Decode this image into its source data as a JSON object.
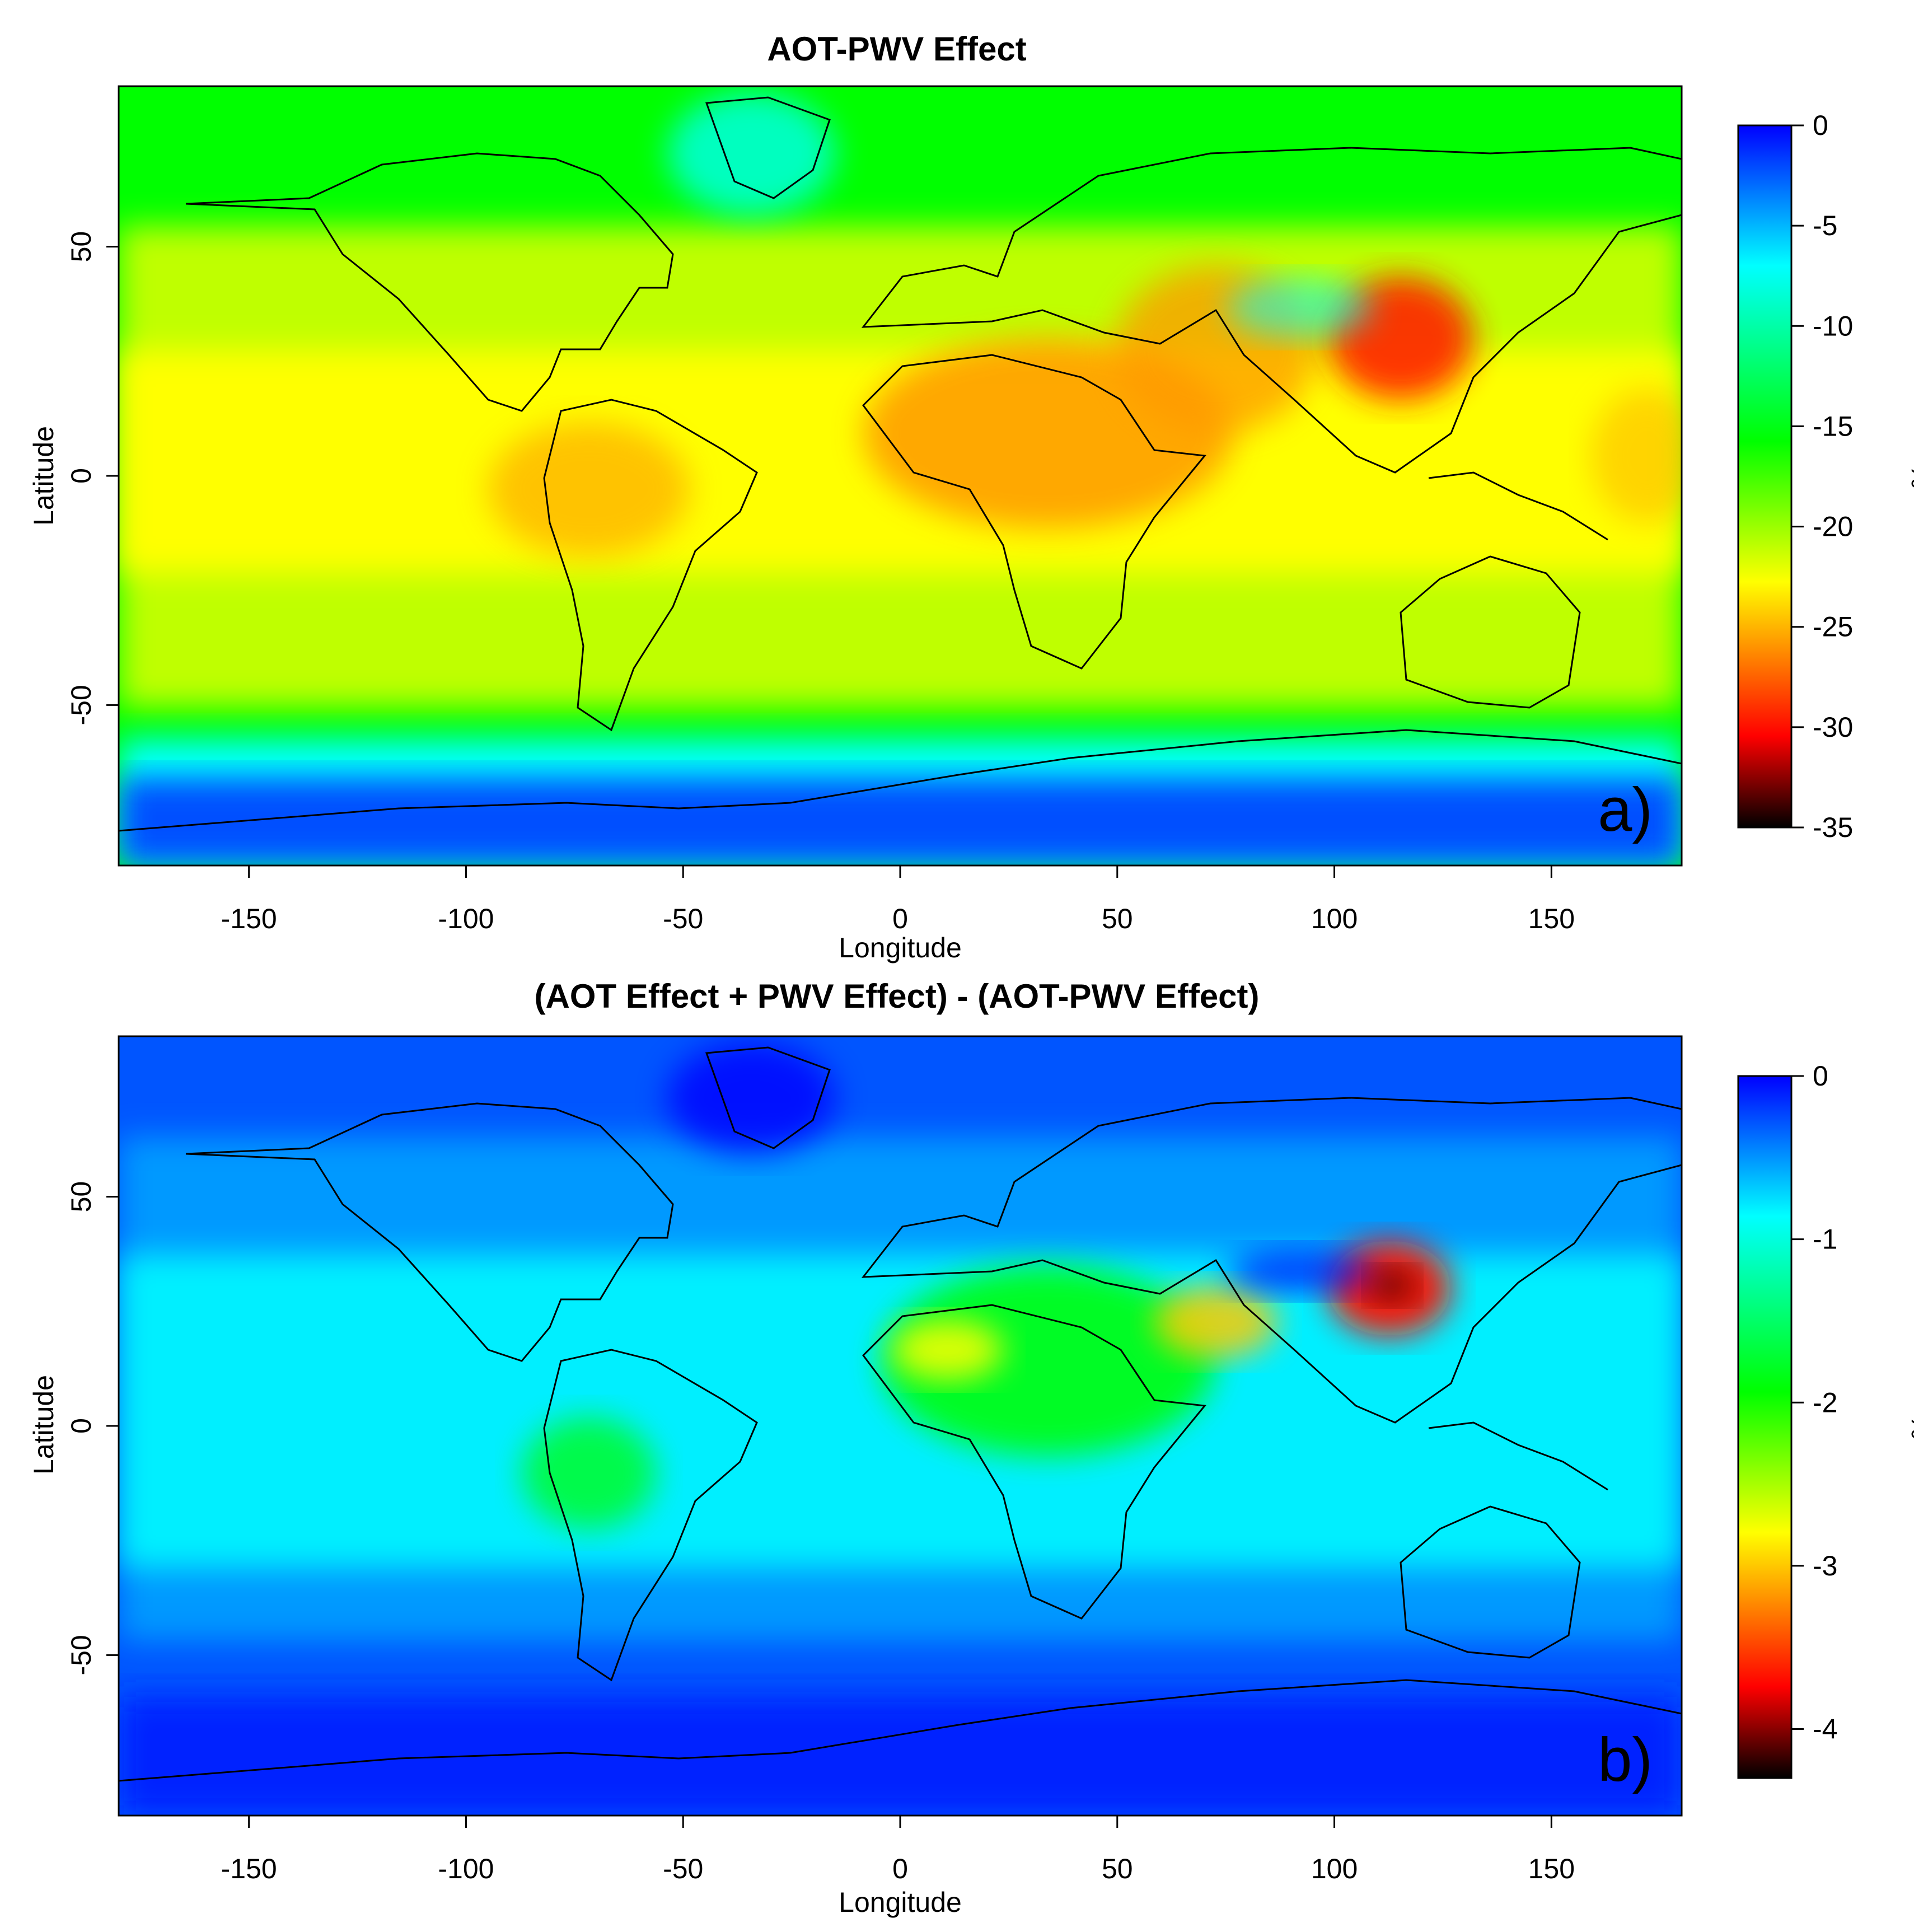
{
  "panels": [
    {
      "title": "AOT-PWV Effect",
      "xlabel": "Longitude",
      "ylabel": "Latitude",
      "panel_letter": "a)",
      "colorbar": {
        "unit": "%",
        "ticks": [
          0,
          -5,
          -10,
          -15,
          -20,
          -25,
          -30,
          -35
        ],
        "range": [
          -35,
          0
        ]
      }
    },
    {
      "title": "(AOT Effect + PWV Effect) - (AOT-PWV Effect)",
      "xlabel": "Longitude",
      "ylabel": "Latitude",
      "panel_letter": "b)",
      "colorbar": {
        "unit": "%",
        "ticks": [
          0,
          -1,
          -2,
          -3,
          -4
        ],
        "range": [
          -4.3,
          0
        ]
      }
    }
  ],
  "x_ticks": [
    -150,
    -100,
    -50,
    0,
    50,
    100,
    150
  ],
  "y_ticks": [
    50,
    0,
    -50
  ],
  "xlim": [
    -180,
    180
  ],
  "ylim": [
    -85,
    85
  ],
  "colormap": [
    "#000000",
    "#ff0000",
    "#ffff00",
    "#00ff00",
    "#00ffff",
    "#0000ff"
  ],
  "chart_data": [
    {
      "type": "heatmap",
      "title": "AOT-PWV Effect",
      "xlabel": "Longitude",
      "ylabel": "Latitude",
      "xlim": [
        -180,
        180
      ],
      "ylim": [
        -85,
        85
      ],
      "value_range": [
        -35,
        0
      ],
      "unit": "%",
      "zonal_profile": {
        "lat": [
          80,
          60,
          40,
          20,
          0,
          -20,
          -40,
          -60,
          -70,
          -80
        ],
        "value": [
          -11,
          -13,
          -17,
          -20,
          -21,
          -19,
          -15,
          -12,
          -5,
          -2
        ]
      },
      "hotspots": [
        {
          "lon": 113,
          "lat": 35,
          "value": -30
        },
        {
          "lon": 10,
          "lat": 3,
          "value": -25
        },
        {
          "lon": 80,
          "lat": 28,
          "value": -24
        },
        {
          "lon": -60,
          "lat": -5,
          "value": -23
        },
        {
          "lon": -42,
          "lat": 72,
          "value": -6
        },
        {
          "lon": 90,
          "lat": 37,
          "value": -7
        }
      ]
    },
    {
      "type": "heatmap",
      "title": "(AOT Effect + PWV Effect) - (AOT-PWV Effect)",
      "xlabel": "Longitude",
      "ylabel": "Latitude",
      "xlim": [
        -180,
        180
      ],
      "ylim": [
        -85,
        85
      ],
      "value_range": [
        -4.3,
        0
      ],
      "unit": "%",
      "zonal_profile": {
        "lat": [
          80,
          60,
          40,
          20,
          0,
          -20,
          -40,
          -60,
          -70,
          -80
        ],
        "value": [
          -0.4,
          -0.6,
          -1.0,
          -1.1,
          -1.0,
          -1.0,
          -0.7,
          -0.5,
          -0.2,
          -0.1
        ]
      },
      "hotspots": [
        {
          "lon": 113,
          "lat": 35,
          "value": -3.8
        },
        {
          "lon": 10,
          "lat": 18,
          "value": -2.2
        },
        {
          "lon": 75,
          "lat": 28,
          "value": -2.5
        },
        {
          "lon": -60,
          "lat": -8,
          "value": -1.6
        },
        {
          "lon": -42,
          "lat": 72,
          "value": -0.1
        },
        {
          "lon": 90,
          "lat": 37,
          "value": -0.1
        }
      ]
    }
  ]
}
